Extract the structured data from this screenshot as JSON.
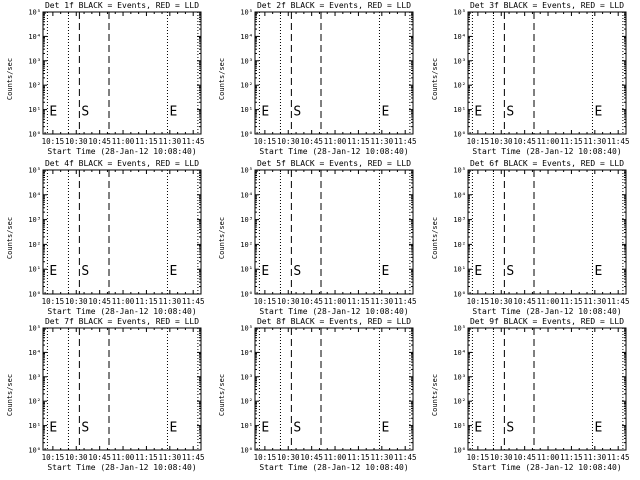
{
  "chart_data": [
    {
      "type": "line",
      "title": "Det 1f BLACK = Events, RED = LLD",
      "xlabel": "Start Time (28-Jan-12 10:08:40)",
      "ylabel": "Counts/sec",
      "x_ticks": [
        "10:15",
        "10:30",
        "10:45",
        "11:00",
        "11:15",
        "11:30",
        "11:45"
      ],
      "y_ticks": [
        "10⁰",
        "10¹",
        "10²",
        "10³",
        "10⁴",
        "10⁵"
      ],
      "xlim": [
        "10:08:40",
        "11:50:00"
      ],
      "ylim": [
        1,
        100000
      ],
      "y_scale": "log",
      "vlines_dotted": [
        "10:11:30",
        "10:25:00",
        "11:28:30",
        "11:48:00"
      ],
      "vlines_dashed": [
        "10:32:00",
        "10:51:00"
      ],
      "markers": [
        {
          "label": "E",
          "x": "10:11:30"
        },
        {
          "label": "S",
          "x": "10:32:00"
        },
        {
          "label": "E",
          "x": "11:28:30"
        }
      ],
      "series": []
    },
    {
      "type": "line",
      "title": "Det 2f BLACK = Events, RED = LLD",
      "xlabel": "Start Time (28-Jan-12 10:08:40)",
      "ylabel": "Counts/sec",
      "x_ticks": [
        "10:15",
        "10:30",
        "10:45",
        "11:00",
        "11:15",
        "11:30",
        "11:45"
      ],
      "y_ticks": [
        "10⁰",
        "10¹",
        "10²",
        "10³",
        "10⁴",
        "10⁵"
      ],
      "xlim": [
        "10:08:40",
        "11:50:00"
      ],
      "ylim": [
        1,
        100000
      ],
      "y_scale": "log",
      "vlines_dotted": [
        "10:11:30",
        "10:25:00",
        "11:28:30",
        "11:48:00"
      ],
      "vlines_dashed": [
        "10:32:00",
        "10:51:00"
      ],
      "markers": [
        {
          "label": "E",
          "x": "10:11:30"
        },
        {
          "label": "S",
          "x": "10:32:00"
        },
        {
          "label": "E",
          "x": "11:28:30"
        }
      ],
      "series": []
    },
    {
      "type": "line",
      "title": "Det 3f BLACK = Events, RED = LLD",
      "xlabel": "Start Time (28-Jan-12 10:08:40)",
      "ylabel": "Counts/sec",
      "x_ticks": [
        "10:15",
        "10:30",
        "10:45",
        "11:00",
        "11:15",
        "11:30",
        "11:45"
      ],
      "y_ticks": [
        "10⁰",
        "10¹",
        "10²",
        "10³",
        "10⁴",
        "10⁵"
      ],
      "xlim": [
        "10:08:40",
        "11:50:00"
      ],
      "ylim": [
        1,
        100000
      ],
      "y_scale": "log",
      "vlines_dotted": [
        "10:11:30",
        "10:25:00",
        "11:28:30",
        "11:48:00"
      ],
      "vlines_dashed": [
        "10:32:00",
        "10:51:00"
      ],
      "markers": [
        {
          "label": "E",
          "x": "10:11:30"
        },
        {
          "label": "S",
          "x": "10:32:00"
        },
        {
          "label": "E",
          "x": "11:28:30"
        }
      ],
      "series": []
    },
    {
      "type": "line",
      "title": "Det 4f BLACK = Events, RED = LLD",
      "xlabel": "Start Time (28-Jan-12 10:08:40)",
      "ylabel": "Counts/sec",
      "x_ticks": [
        "10:15",
        "10:30",
        "10:45",
        "11:00",
        "11:15",
        "11:30",
        "11:45"
      ],
      "y_ticks": [
        "10⁰",
        "10¹",
        "10²",
        "10³",
        "10⁴",
        "10⁵"
      ],
      "xlim": [
        "10:08:40",
        "11:50:00"
      ],
      "ylim": [
        1,
        100000
      ],
      "y_scale": "log",
      "vlines_dotted": [
        "10:11:30",
        "10:25:00",
        "11:28:30",
        "11:48:00"
      ],
      "vlines_dashed": [
        "10:32:00",
        "10:51:00"
      ],
      "markers": [
        {
          "label": "E",
          "x": "10:11:30"
        },
        {
          "label": "S",
          "x": "10:32:00"
        },
        {
          "label": "E",
          "x": "11:28:30"
        }
      ],
      "series": []
    },
    {
      "type": "line",
      "title": "Det 5f BLACK = Events, RED = LLD",
      "xlabel": "Start Time (28-Jan-12 10:08:40)",
      "ylabel": "Counts/sec",
      "x_ticks": [
        "10:15",
        "10:30",
        "10:45",
        "11:00",
        "11:15",
        "11:30",
        "11:45"
      ],
      "y_ticks": [
        "10⁰",
        "10¹",
        "10²",
        "10³",
        "10⁴",
        "10⁵"
      ],
      "xlim": [
        "10:08:40",
        "11:50:00"
      ],
      "ylim": [
        1,
        100000
      ],
      "y_scale": "log",
      "vlines_dotted": [
        "10:11:30",
        "10:25:00",
        "11:28:30",
        "11:48:00"
      ],
      "vlines_dashed": [
        "10:32:00",
        "10:51:00"
      ],
      "markers": [
        {
          "label": "E",
          "x": "10:11:30"
        },
        {
          "label": "S",
          "x": "10:32:00"
        },
        {
          "label": "E",
          "x": "11:28:30"
        }
      ],
      "series": []
    },
    {
      "type": "line",
      "title": "Det 6f BLACK = Events, RED = LLD",
      "xlabel": "Start Time (28-Jan-12 10:08:40)",
      "ylabel": "Counts/sec",
      "x_ticks": [
        "10:15",
        "10:30",
        "10:45",
        "11:00",
        "11:15",
        "11:30",
        "11:45"
      ],
      "y_ticks": [
        "10⁰",
        "10¹",
        "10²",
        "10³",
        "10⁴",
        "10⁵"
      ],
      "xlim": [
        "10:08:40",
        "11:50:00"
      ],
      "ylim": [
        1,
        100000
      ],
      "y_scale": "log",
      "vlines_dotted": [
        "10:11:30",
        "10:25:00",
        "11:28:30",
        "11:48:00"
      ],
      "vlines_dashed": [
        "10:32:00",
        "10:51:00"
      ],
      "markers": [
        {
          "label": "E",
          "x": "10:11:30"
        },
        {
          "label": "S",
          "x": "10:32:00"
        },
        {
          "label": "E",
          "x": "11:28:30"
        }
      ],
      "series": []
    },
    {
      "type": "line",
      "title": "Det 7f BLACK = Events, RED = LLD",
      "xlabel": "Start Time (28-Jan-12 10:08:40)",
      "ylabel": "Counts/sec",
      "x_ticks": [
        "10:15",
        "10:30",
        "10:45",
        "11:00",
        "11:15",
        "11:30",
        "11:45"
      ],
      "y_ticks": [
        "10⁰",
        "10¹",
        "10²",
        "10³",
        "10⁴",
        "10⁵"
      ],
      "xlim": [
        "10:08:40",
        "11:50:00"
      ],
      "ylim": [
        1,
        100000
      ],
      "y_scale": "log",
      "vlines_dotted": [
        "10:11:30",
        "10:25:00",
        "11:28:30",
        "11:48:00"
      ],
      "vlines_dashed": [
        "10:32:00",
        "10:51:00"
      ],
      "markers": [
        {
          "label": "E",
          "x": "10:11:30"
        },
        {
          "label": "S",
          "x": "10:32:00"
        },
        {
          "label": "E",
          "x": "11:28:30"
        }
      ],
      "series": []
    },
    {
      "type": "line",
      "title": "Det 8f BLACK = Events, RED = LLD",
      "xlabel": "Start Time (28-Jan-12 10:08:40)",
      "ylabel": "Counts/sec",
      "x_ticks": [
        "10:15",
        "10:30",
        "10:45",
        "11:00",
        "11:15",
        "11:30",
        "11:45"
      ],
      "y_ticks": [
        "10⁰",
        "10¹",
        "10²",
        "10³",
        "10⁴",
        "10⁵"
      ],
      "xlim": [
        "10:08:40",
        "11:50:00"
      ],
      "ylim": [
        1,
        100000
      ],
      "y_scale": "log",
      "vlines_dotted": [
        "10:11:30",
        "10:25:00",
        "11:28:30",
        "11:48:00"
      ],
      "vlines_dashed": [
        "10:32:00",
        "10:51:00"
      ],
      "markers": [
        {
          "label": "E",
          "x": "10:11:30"
        },
        {
          "label": "S",
          "x": "10:32:00"
        },
        {
          "label": "E",
          "x": "11:28:30"
        }
      ],
      "series": []
    },
    {
      "type": "line",
      "title": "Det 9f BLACK = Events, RED = LLD",
      "xlabel": "Start Time (28-Jan-12 10:08:40)",
      "ylabel": "Counts/sec",
      "x_ticks": [
        "10:15",
        "10:30",
        "10:45",
        "11:00",
        "11:15",
        "11:30",
        "11:45"
      ],
      "y_ticks": [
        "10⁰",
        "10¹",
        "10²",
        "10³",
        "10⁴",
        "10⁵"
      ],
      "xlim": [
        "10:08:40",
        "11:50:00"
      ],
      "ylim": [
        1,
        100000
      ],
      "y_scale": "log",
      "vlines_dotted": [
        "10:11:30",
        "10:25:00",
        "11:28:30",
        "11:48:00"
      ],
      "vlines_dashed": [
        "10:32:00",
        "10:51:00"
      ],
      "markers": [
        {
          "label": "E",
          "x": "10:11:30"
        },
        {
          "label": "S",
          "x": "10:32:00"
        },
        {
          "label": "E",
          "x": "11:28:30"
        }
      ],
      "series": []
    }
  ],
  "colors": {
    "background": "#ffffff",
    "axes": "#000000",
    "events": "#000000",
    "lld": "#ff0000"
  }
}
